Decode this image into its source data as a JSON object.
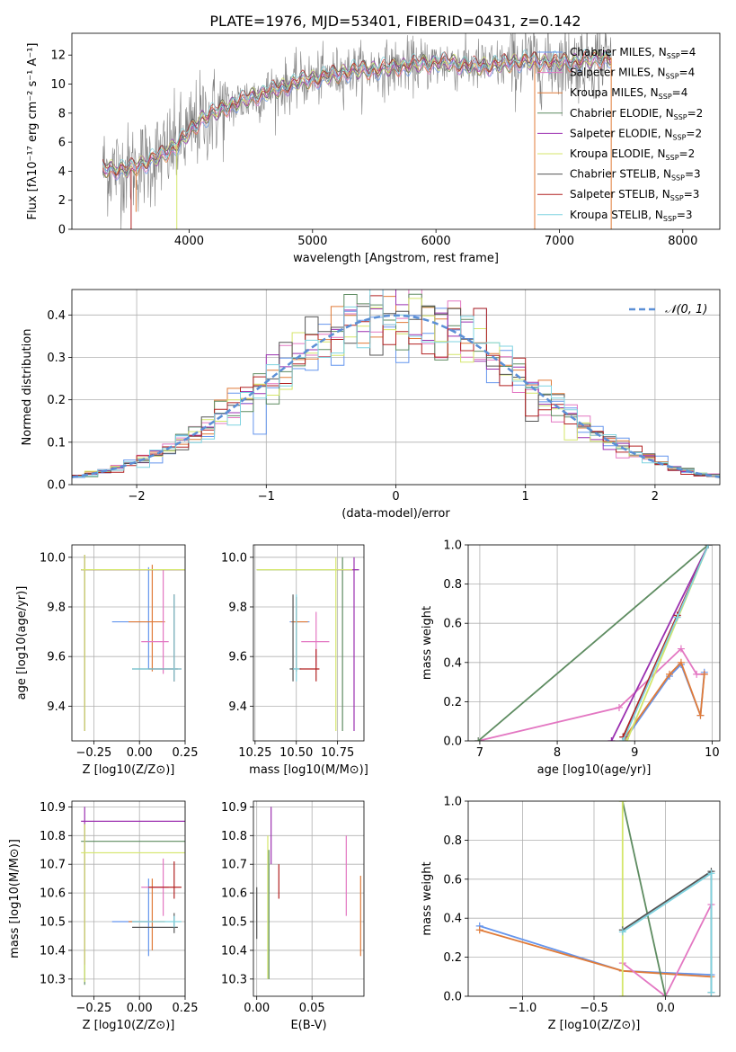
{
  "figure_title": "PLATE=1976, MJD=53401, FIBERID=0431, z=0.142",
  "colors": {
    "chabrier_miles": "#6495ed",
    "salpeter_miles": "#e377c2",
    "kroupa_miles": "#e07b39",
    "chabrier_elodie": "#5e8c61",
    "salpeter_elodie": "#9b30b0",
    "kroupa_elodie": "#d4e66a",
    "chabrier_stelib": "#555555",
    "salpeter_stelib": "#b22222",
    "kroupa_stelib": "#7fd3e0",
    "data": "#808080",
    "normal": "#5b8fd6"
  },
  "chart_data": [
    {
      "id": "spectrum",
      "type": "line",
      "xlabel": "wavelength [Angstrom, rest frame]",
      "ylabel": "Flux [fλ10⁻¹⁷ erg cm⁻² s⁻¹ A⁻¹]",
      "xlim": [
        3050,
        8300
      ],
      "ylim": [
        0,
        13.5
      ],
      "xticks": [
        4000,
        5000,
        6000,
        7000,
        8000
      ],
      "yticks": [
        0,
        2,
        4,
        6,
        8,
        10,
        12
      ],
      "grid": false,
      "legend_position": "right",
      "continuum": {
        "x": [
          3300,
          3500,
          3650,
          3800,
          3950,
          4100,
          4300,
          4500,
          4700,
          4900,
          5100,
          5300,
          5500,
          5700,
          5900,
          6100,
          6300,
          6500,
          6700,
          6900,
          7100,
          7300,
          7420
        ],
        "y": [
          4.2,
          4.1,
          4.6,
          5.2,
          6.2,
          7.6,
          8.4,
          9.1,
          9.6,
          10.2,
          10.5,
          10.9,
          11.0,
          11.2,
          11.4,
          11.5,
          11.2,
          11.3,
          11.6,
          11.5,
          11.5,
          11.7,
          11.8
        ]
      },
      "series": [
        {
          "name": "Chabrier MILES, N_SSP=4",
          "name_main": "Chabrier MILES, N",
          "name_sub": "SSP",
          "name_tail": "=4",
          "color_key": "chabrier_miles"
        },
        {
          "name": "Salpeter MILES, N_SSP=4",
          "name_main": "Salpeter MILES, N",
          "name_sub": "SSP",
          "name_tail": "=4",
          "color_key": "salpeter_miles"
        },
        {
          "name": "Kroupa MILES, N_SSP=4",
          "name_main": "Kroupa MILES, N",
          "name_sub": "SSP",
          "name_tail": "=4",
          "color_key": "kroupa_miles"
        },
        {
          "name": "Chabrier ELODIE, N_SSP=2",
          "name_main": "Chabrier ELODIE, N",
          "name_sub": "SSP",
          "name_tail": "=2",
          "color_key": "chabrier_elodie"
        },
        {
          "name": "Salpeter ELODIE, N_SSP=2",
          "name_main": "Salpeter ELODIE, N",
          "name_sub": "SSP",
          "name_tail": "=2",
          "color_key": "salpeter_elodie"
        },
        {
          "name": "Kroupa ELODIE, N_SSP=2",
          "name_main": "Kroupa ELODIE, N",
          "name_sub": "SSP",
          "name_tail": "=2",
          "color_key": "kroupa_elodie"
        },
        {
          "name": "Chabrier STELIB, N_SSP=3",
          "name_main": "Chabrier STELIB, N",
          "name_sub": "SSP",
          "name_tail": "=3",
          "color_key": "chabrier_stelib"
        },
        {
          "name": "Salpeter STELIB, N_SSP=3",
          "name_main": "Salpeter STELIB, N",
          "name_sub": "SSP",
          "name_tail": "=3",
          "color_key": "salpeter_stelib"
        },
        {
          "name": "Kroupa STELIB, N_SSP=3",
          "name_main": "Kroupa STELIB, N",
          "name_sub": "SSP",
          "name_tail": "=3",
          "color_key": "kroupa_stelib"
        }
      ]
    },
    {
      "id": "residuals",
      "type": "line",
      "xlabel": "(data-model)/error",
      "ylabel": "Normed distribution",
      "xlim": [
        -2.5,
        2.5
      ],
      "ylim": [
        0,
        0.46
      ],
      "xticks": [
        -2,
        -1,
        0,
        1,
        2
      ],
      "yticks": [
        0.0,
        0.1,
        0.2,
        0.3,
        0.4
      ],
      "grid": true,
      "bin_width": 0.1,
      "legend_label": "𝒩(0, 1)",
      "legend_position": "top-right"
    },
    {
      "id": "age_vs_Z",
      "type": "scatter",
      "xlabel": "Z [log10(Z/Z⊙)]",
      "ylabel": "age  [log10(age/yr)]",
      "xlim": [
        -0.37,
        0.25
      ],
      "ylim": [
        9.26,
        10.05
      ],
      "xticks": [
        -0.25,
        0.0,
        0.25
      ],
      "yticks": [
        9.4,
        9.6,
        9.8,
        10.0
      ],
      "grid": true,
      "points": [
        {
          "color_key": "chabrier_miles",
          "x": 0.05,
          "y": 9.74,
          "xerr": [
            0.2,
            0.0
          ],
          "yerr": [
            0.19,
            0.22
          ]
        },
        {
          "color_key": "kroupa_miles",
          "x": 0.07,
          "y": 9.74,
          "xerr": [
            0.13,
            0.07
          ],
          "yerr": [
            0.2,
            0.23
          ]
        },
        {
          "color_key": "salpeter_miles",
          "x": 0.13,
          "y": 9.66,
          "xerr": [
            0.12,
            0.03
          ],
          "yerr": [
            0.13,
            0.29
          ]
        },
        {
          "color_key": "chabrier_elodie",
          "x": -0.3,
          "y": 9.95,
          "xerr": [
            0.02,
            0.55
          ],
          "yerr": [
            0.65,
            0.06
          ]
        },
        {
          "color_key": "salpeter_elodie",
          "x": -0.3,
          "y": 9.95,
          "xerr": [
            0.02,
            0.55
          ],
          "yerr": [
            0.65,
            0.06
          ]
        },
        {
          "color_key": "kroupa_elodie",
          "x": -0.3,
          "y": 9.95,
          "xerr": [
            0.02,
            0.55
          ],
          "yerr": [
            0.65,
            0.06
          ]
        },
        {
          "color_key": "chabrier_stelib",
          "x": 0.19,
          "y": 9.55,
          "xerr": [
            0.23,
            0.02
          ],
          "yerr": [
            0.05,
            0.3
          ]
        },
        {
          "color_key": "salpeter_stelib",
          "x": 0.19,
          "y": 9.55,
          "xerr": [
            0.14,
            0.04
          ],
          "yerr": [
            0.05,
            0.3
          ]
        },
        {
          "color_key": "kroupa_stelib",
          "x": 0.19,
          "y": 9.55,
          "xerr": [
            0.23,
            0.04
          ],
          "yerr": [
            0.05,
            0.3
          ]
        }
      ]
    },
    {
      "id": "age_vs_mass",
      "type": "scatter",
      "xlabel": "mass [log10(M/M⊙)]",
      "ylabel": "",
      "xlim": [
        10.24,
        10.91
      ],
      "ylim": [
        9.26,
        10.05
      ],
      "xticks": [
        10.25,
        10.5,
        10.75
      ],
      "yticks": [
        9.4,
        9.6,
        9.8,
        10.0
      ],
      "grid": true,
      "points": [
        {
          "color_key": "chabrier_miles",
          "x": 10.5,
          "y": 9.74,
          "xerr": [
            0.04,
            0.08
          ],
          "yerr": [
            0.2,
            0.1
          ]
        },
        {
          "color_key": "kroupa_miles",
          "x": 10.5,
          "y": 9.74,
          "xerr": [
            0.03,
            0.07
          ],
          "yerr": [
            0.2,
            0.1
          ]
        },
        {
          "color_key": "salpeter_miles",
          "x": 10.62,
          "y": 9.66,
          "xerr": [
            0.09,
            0.08
          ],
          "yerr": [
            0.1,
            0.12
          ]
        },
        {
          "color_key": "chabrier_elodie",
          "x": 10.78,
          "y": 9.95,
          "xerr": [
            0.52,
            0.1
          ],
          "yerr": [
            0.65,
            0.05
          ]
        },
        {
          "color_key": "salpeter_elodie",
          "x": 10.85,
          "y": 9.95,
          "xerr": [
            0.1,
            0.03
          ],
          "yerr": [
            0.65,
            0.05
          ]
        },
        {
          "color_key": "kroupa_elodie",
          "x": 10.74,
          "y": 9.95,
          "xerr": [
            0.48,
            0.1
          ],
          "yerr": [
            0.65,
            0.05
          ]
        },
        {
          "color_key": "chabrier_stelib",
          "x": 10.48,
          "y": 9.55,
          "xerr": [
            0.02,
            0.05
          ],
          "yerr": [
            0.05,
            0.3
          ]
        },
        {
          "color_key": "salpeter_stelib",
          "x": 10.62,
          "y": 9.55,
          "xerr": [
            0.1,
            0.02
          ],
          "yerr": [
            0.05,
            0.08
          ]
        },
        {
          "color_key": "kroupa_stelib",
          "x": 10.5,
          "y": 9.55,
          "xerr": [
            0.02,
            0.02
          ],
          "yerr": [
            0.05,
            0.3
          ]
        }
      ]
    },
    {
      "id": "mass_weight_vs_age",
      "type": "line",
      "xlabel": "age  [log10(age/yr)]",
      "ylabel": "mass weight",
      "xlim": [
        6.85,
        10.1
      ],
      "ylim": [
        0,
        1
      ],
      "xticks": [
        7,
        8,
        9,
        10
      ],
      "yticks": [
        0.0,
        0.2,
        0.4,
        0.6,
        0.8,
        1.0
      ],
      "grid": true,
      "series": [
        {
          "color_key": "chabrier_miles",
          "x": [
            8.88,
            9.45,
            9.6,
            9.85,
            9.9
          ],
          "y": [
            0.01,
            0.33,
            0.39,
            0.13,
            0.35
          ]
        },
        {
          "color_key": "salpeter_miles",
          "x": [
            6.98,
            8.8,
            9.6,
            9.8,
            9.9
          ],
          "y": [
            0.0,
            0.17,
            0.47,
            0.34,
            0.34
          ]
        },
        {
          "color_key": "kroupa_miles",
          "x": [
            8.88,
            9.45,
            9.6,
            9.85,
            9.9
          ],
          "y": [
            0.02,
            0.34,
            0.4,
            0.13,
            0.34
          ]
        },
        {
          "color_key": "chabrier_elodie",
          "x": [
            6.98,
            9.95
          ],
          "y": [
            0.0,
            1.0
          ]
        },
        {
          "color_key": "salpeter_elodie",
          "x": [
            8.7,
            9.95
          ],
          "y": [
            0.0,
            1.0
          ]
        },
        {
          "color_key": "kroupa_elodie",
          "x": [
            8.9,
            9.95
          ],
          "y": [
            0.0,
            1.0
          ]
        },
        {
          "color_key": "chabrier_stelib",
          "x": [
            8.85,
            9.55,
            9.95
          ],
          "y": [
            0.02,
            0.64,
            1.0
          ]
        },
        {
          "color_key": "salpeter_stelib",
          "x": [
            8.85,
            9.55,
            9.95
          ],
          "y": [
            0.02,
            0.64,
            1.0
          ]
        },
        {
          "color_key": "kroupa_stelib",
          "x": [
            8.85,
            9.55,
            9.95
          ],
          "y": [
            0.0,
            0.63,
            1.0
          ]
        }
      ]
    },
    {
      "id": "mass_vs_Z",
      "type": "scatter",
      "xlabel": "Z [log10(Z/Z⊙)]",
      "ylabel": "mass [log10(M/M⊙)]",
      "xlim": [
        -0.37,
        0.25
      ],
      "ylim": [
        10.24,
        10.92
      ],
      "xticks": [
        -0.25,
        0.0,
        0.25
      ],
      "yticks": [
        10.3,
        10.4,
        10.5,
        10.6,
        10.7,
        10.8,
        10.9
      ],
      "grid": true,
      "points": [
        {
          "color_key": "chabrier_miles",
          "x": 0.05,
          "y": 10.5,
          "xerr": [
            0.2,
            0.0
          ],
          "yerr": [
            0.12,
            0.15
          ]
        },
        {
          "color_key": "kroupa_miles",
          "x": 0.07,
          "y": 10.5,
          "xerr": [
            0.13,
            0.07
          ],
          "yerr": [
            0.1,
            0.15
          ]
        },
        {
          "color_key": "salpeter_miles",
          "x": 0.13,
          "y": 10.62,
          "xerr": [
            0.12,
            0.03
          ],
          "yerr": [
            0.1,
            0.1
          ]
        },
        {
          "color_key": "chabrier_elodie",
          "x": -0.3,
          "y": 10.78,
          "xerr": [
            0.02,
            0.55
          ],
          "yerr": [
            0.5,
            0.06
          ]
        },
        {
          "color_key": "salpeter_elodie",
          "x": -0.3,
          "y": 10.85,
          "xerr": [
            0.02,
            0.55
          ],
          "yerr": [
            0.5,
            0.05
          ]
        },
        {
          "color_key": "kroupa_elodie",
          "x": -0.3,
          "y": 10.74,
          "xerr": [
            0.02,
            0.55
          ],
          "yerr": [
            0.45,
            0.1
          ]
        },
        {
          "color_key": "chabrier_stelib",
          "x": 0.19,
          "y": 10.48,
          "xerr": [
            0.23,
            0.02
          ],
          "yerr": [
            0.02,
            0.05
          ]
        },
        {
          "color_key": "salpeter_stelib",
          "x": 0.19,
          "y": 10.62,
          "xerr": [
            0.14,
            0.04
          ],
          "yerr": [
            0.04,
            0.09
          ]
        },
        {
          "color_key": "kroupa_stelib",
          "x": 0.19,
          "y": 10.5,
          "xerr": [
            0.23,
            0.04
          ],
          "yerr": [
            0.02,
            0.02
          ]
        }
      ]
    },
    {
      "id": "mass_vs_ebv",
      "type": "scatter",
      "xlabel": "E(B-V)",
      "ylabel": "",
      "xlim": [
        -0.003,
        0.097
      ],
      "ylim": [
        10.24,
        10.92
      ],
      "xticks": [
        0.0,
        0.05
      ],
      "yticks": [
        10.3,
        10.4,
        10.5,
        10.6,
        10.7,
        10.8,
        10.9
      ],
      "grid": true,
      "points": [
        {
          "color_key": "chabrier_stelib",
          "x": 0.0,
          "y": 10.53,
          "yerr": [
            0.09,
            0.09
          ]
        },
        {
          "color_key": "kroupa_elodie",
          "x": 0.01,
          "y": 10.55,
          "yerr": [
            0.25,
            0.25
          ]
        },
        {
          "color_key": "chabrier_elodie",
          "x": 0.011,
          "y": 10.55,
          "yerr": [
            0.25,
            0.2
          ]
        },
        {
          "color_key": "salpeter_elodie",
          "x": 0.013,
          "y": 10.85,
          "yerr": [
            0.15,
            0.05
          ]
        },
        {
          "color_key": "salpeter_stelib",
          "x": 0.02,
          "y": 10.64,
          "yerr": [
            0.06,
            0.06
          ]
        },
        {
          "color_key": "salpeter_miles",
          "x": 0.081,
          "y": 10.66,
          "yerr": [
            0.14,
            0.14
          ]
        },
        {
          "color_key": "kroupa_miles",
          "x": 0.094,
          "y": 10.52,
          "yerr": [
            0.14,
            0.14
          ]
        }
      ]
    },
    {
      "id": "mass_weight_vs_Z",
      "type": "line",
      "xlabel": "Z [log10(Z/Z⊙)]",
      "ylabel": "mass weight",
      "xlim": [
        -1.38,
        0.38
      ],
      "ylim": [
        0,
        1
      ],
      "xticks": [
        -1.0,
        -0.5,
        0.0
      ],
      "yticks": [
        0.0,
        0.2,
        0.4,
        0.6,
        0.8,
        1.0
      ],
      "grid": true,
      "series": [
        {
          "color_key": "chabrier_miles",
          "x": [
            -1.3,
            -0.3,
            0.32
          ],
          "y": [
            0.36,
            0.13,
            0.11
          ]
        },
        {
          "color_key": "kroupa_miles",
          "x": [
            -1.3,
            -0.3,
            0.32
          ],
          "y": [
            0.34,
            0.13,
            0.1
          ]
        },
        {
          "color_key": "salpeter_miles",
          "x": [
            -0.3,
            0.0,
            0.32
          ],
          "y": [
            0.17,
            0.0,
            0.47
          ]
        },
        {
          "color_key": "chabrier_elodie",
          "x": [
            -0.3,
            0.0
          ],
          "y": [
            1.0,
            0.0
          ]
        },
        {
          "color_key": "kroupa_elodie",
          "x": [
            -0.3,
            -0.3
          ],
          "y": [
            0.0,
            1.0
          ]
        },
        {
          "color_key": "chabrier_stelib",
          "x": [
            -0.3,
            0.32,
            0.32
          ],
          "y": [
            0.34,
            0.64,
            0.02
          ]
        },
        {
          "color_key": "kroupa_stelib",
          "x": [
            -0.3,
            0.32,
            0.32
          ],
          "y": [
            0.33,
            0.63,
            0.02
          ]
        }
      ]
    }
  ]
}
